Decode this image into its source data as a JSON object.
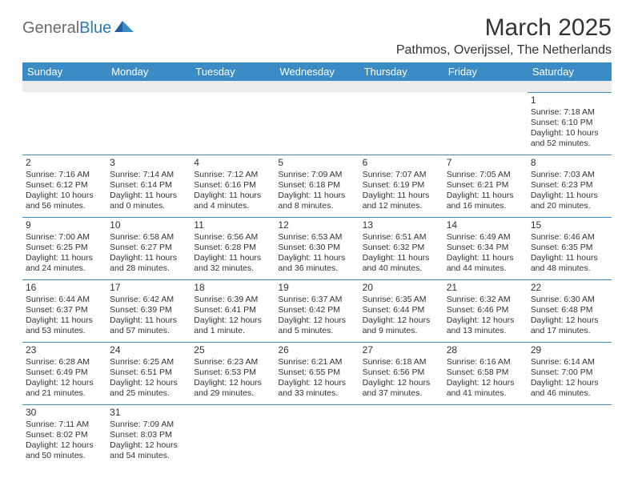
{
  "logo": {
    "word1": "General",
    "word2": "Blue"
  },
  "title": "March 2025",
  "location": "Pathmos, Overijssel, The Netherlands",
  "colors": {
    "header_bg": "#3b8bc4",
    "header_fg": "#ffffff",
    "rule": "#3b8bc4",
    "logo_gray": "#6b6b6b",
    "logo_blue": "#2a7ab0",
    "blank_bg": "#ececec"
  },
  "day_headers": [
    "Sunday",
    "Monday",
    "Tuesday",
    "Wednesday",
    "Thursday",
    "Friday",
    "Saturday"
  ],
  "weeks": [
    [
      null,
      null,
      null,
      null,
      null,
      null,
      {
        "n": "1",
        "sr": "Sunrise: 7:18 AM",
        "ss": "Sunset: 6:10 PM",
        "d1": "Daylight: 10 hours",
        "d2": "and 52 minutes."
      }
    ],
    [
      {
        "n": "2",
        "sr": "Sunrise: 7:16 AM",
        "ss": "Sunset: 6:12 PM",
        "d1": "Daylight: 10 hours",
        "d2": "and 56 minutes."
      },
      {
        "n": "3",
        "sr": "Sunrise: 7:14 AM",
        "ss": "Sunset: 6:14 PM",
        "d1": "Daylight: 11 hours",
        "d2": "and 0 minutes."
      },
      {
        "n": "4",
        "sr": "Sunrise: 7:12 AM",
        "ss": "Sunset: 6:16 PM",
        "d1": "Daylight: 11 hours",
        "d2": "and 4 minutes."
      },
      {
        "n": "5",
        "sr": "Sunrise: 7:09 AM",
        "ss": "Sunset: 6:18 PM",
        "d1": "Daylight: 11 hours",
        "d2": "and 8 minutes."
      },
      {
        "n": "6",
        "sr": "Sunrise: 7:07 AM",
        "ss": "Sunset: 6:19 PM",
        "d1": "Daylight: 11 hours",
        "d2": "and 12 minutes."
      },
      {
        "n": "7",
        "sr": "Sunrise: 7:05 AM",
        "ss": "Sunset: 6:21 PM",
        "d1": "Daylight: 11 hours",
        "d2": "and 16 minutes."
      },
      {
        "n": "8",
        "sr": "Sunrise: 7:03 AM",
        "ss": "Sunset: 6:23 PM",
        "d1": "Daylight: 11 hours",
        "d2": "and 20 minutes."
      }
    ],
    [
      {
        "n": "9",
        "sr": "Sunrise: 7:00 AM",
        "ss": "Sunset: 6:25 PM",
        "d1": "Daylight: 11 hours",
        "d2": "and 24 minutes."
      },
      {
        "n": "10",
        "sr": "Sunrise: 6:58 AM",
        "ss": "Sunset: 6:27 PM",
        "d1": "Daylight: 11 hours",
        "d2": "and 28 minutes."
      },
      {
        "n": "11",
        "sr": "Sunrise: 6:56 AM",
        "ss": "Sunset: 6:28 PM",
        "d1": "Daylight: 11 hours",
        "d2": "and 32 minutes."
      },
      {
        "n": "12",
        "sr": "Sunrise: 6:53 AM",
        "ss": "Sunset: 6:30 PM",
        "d1": "Daylight: 11 hours",
        "d2": "and 36 minutes."
      },
      {
        "n": "13",
        "sr": "Sunrise: 6:51 AM",
        "ss": "Sunset: 6:32 PM",
        "d1": "Daylight: 11 hours",
        "d2": "and 40 minutes."
      },
      {
        "n": "14",
        "sr": "Sunrise: 6:49 AM",
        "ss": "Sunset: 6:34 PM",
        "d1": "Daylight: 11 hours",
        "d2": "and 44 minutes."
      },
      {
        "n": "15",
        "sr": "Sunrise: 6:46 AM",
        "ss": "Sunset: 6:35 PM",
        "d1": "Daylight: 11 hours",
        "d2": "and 48 minutes."
      }
    ],
    [
      {
        "n": "16",
        "sr": "Sunrise: 6:44 AM",
        "ss": "Sunset: 6:37 PM",
        "d1": "Daylight: 11 hours",
        "d2": "and 53 minutes."
      },
      {
        "n": "17",
        "sr": "Sunrise: 6:42 AM",
        "ss": "Sunset: 6:39 PM",
        "d1": "Daylight: 11 hours",
        "d2": "and 57 minutes."
      },
      {
        "n": "18",
        "sr": "Sunrise: 6:39 AM",
        "ss": "Sunset: 6:41 PM",
        "d1": "Daylight: 12 hours",
        "d2": "and 1 minute."
      },
      {
        "n": "19",
        "sr": "Sunrise: 6:37 AM",
        "ss": "Sunset: 6:42 PM",
        "d1": "Daylight: 12 hours",
        "d2": "and 5 minutes."
      },
      {
        "n": "20",
        "sr": "Sunrise: 6:35 AM",
        "ss": "Sunset: 6:44 PM",
        "d1": "Daylight: 12 hours",
        "d2": "and 9 minutes."
      },
      {
        "n": "21",
        "sr": "Sunrise: 6:32 AM",
        "ss": "Sunset: 6:46 PM",
        "d1": "Daylight: 12 hours",
        "d2": "and 13 minutes."
      },
      {
        "n": "22",
        "sr": "Sunrise: 6:30 AM",
        "ss": "Sunset: 6:48 PM",
        "d1": "Daylight: 12 hours",
        "d2": "and 17 minutes."
      }
    ],
    [
      {
        "n": "23",
        "sr": "Sunrise: 6:28 AM",
        "ss": "Sunset: 6:49 PM",
        "d1": "Daylight: 12 hours",
        "d2": "and 21 minutes."
      },
      {
        "n": "24",
        "sr": "Sunrise: 6:25 AM",
        "ss": "Sunset: 6:51 PM",
        "d1": "Daylight: 12 hours",
        "d2": "and 25 minutes."
      },
      {
        "n": "25",
        "sr": "Sunrise: 6:23 AM",
        "ss": "Sunset: 6:53 PM",
        "d1": "Daylight: 12 hours",
        "d2": "and 29 minutes."
      },
      {
        "n": "26",
        "sr": "Sunrise: 6:21 AM",
        "ss": "Sunset: 6:55 PM",
        "d1": "Daylight: 12 hours",
        "d2": "and 33 minutes."
      },
      {
        "n": "27",
        "sr": "Sunrise: 6:18 AM",
        "ss": "Sunset: 6:56 PM",
        "d1": "Daylight: 12 hours",
        "d2": "and 37 minutes."
      },
      {
        "n": "28",
        "sr": "Sunrise: 6:16 AM",
        "ss": "Sunset: 6:58 PM",
        "d1": "Daylight: 12 hours",
        "d2": "and 41 minutes."
      },
      {
        "n": "29",
        "sr": "Sunrise: 6:14 AM",
        "ss": "Sunset: 7:00 PM",
        "d1": "Daylight: 12 hours",
        "d2": "and 46 minutes."
      }
    ],
    [
      {
        "n": "30",
        "sr": "Sunrise: 7:11 AM",
        "ss": "Sunset: 8:02 PM",
        "d1": "Daylight: 12 hours",
        "d2": "and 50 minutes."
      },
      {
        "n": "31",
        "sr": "Sunrise: 7:09 AM",
        "ss": "Sunset: 8:03 PM",
        "d1": "Daylight: 12 hours",
        "d2": "and 54 minutes."
      },
      null,
      null,
      null,
      null,
      null
    ]
  ]
}
